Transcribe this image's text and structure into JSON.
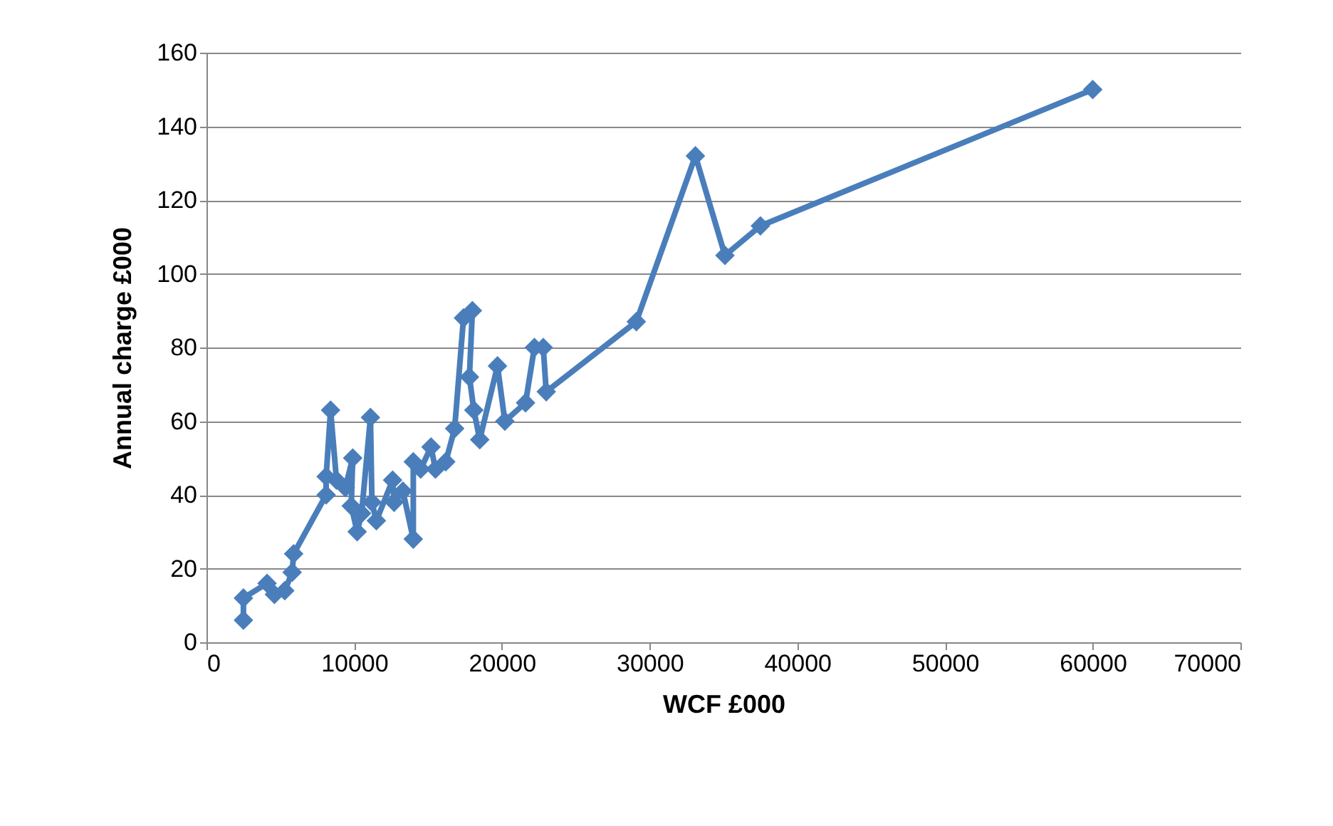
{
  "chart_data": {
    "type": "line",
    "xlabel": "WCF £000",
    "ylabel": "Annual charge £000",
    "x": [
      2500,
      2500,
      4100,
      4600,
      5300,
      5800,
      5900,
      8100,
      8100,
      8400,
      8800,
      9400,
      9900,
      9800,
      10200,
      10500,
      11100,
      11200,
      11500,
      12600,
      12700,
      13300,
      14000,
      14000,
      14500,
      15200,
      15500,
      16200,
      16800,
      17400,
      18000,
      17800,
      18100,
      18500,
      19700,
      20200,
      21600,
      22200,
      22800,
      23000,
      29100,
      33100,
      35100,
      37500,
      60000
    ],
    "series": [
      {
        "color": "#4a7ebb",
        "values": [
          6,
          12,
          16,
          13,
          14,
          19,
          24,
          40,
          45,
          63,
          44,
          42,
          50,
          37,
          30,
          35,
          61,
          38,
          33,
          44,
          38,
          41,
          28,
          49,
          47,
          53,
          47,
          49,
          58,
          88,
          90,
          72,
          63,
          55,
          75,
          60,
          65,
          80,
          80,
          68,
          87,
          132,
          105,
          113,
          150
        ]
      }
    ],
    "xlim": [
      0,
      70000
    ],
    "xticks": [
      0,
      10000,
      20000,
      30000,
      40000,
      50000,
      60000,
      70000
    ],
    "ylim": [
      0,
      160
    ],
    "yticks": [
      0,
      20,
      40,
      60,
      80,
      100,
      120,
      140,
      160
    ],
    "grid": "y",
    "marker": "diamond",
    "line_style": "solid",
    "legend": false
  }
}
